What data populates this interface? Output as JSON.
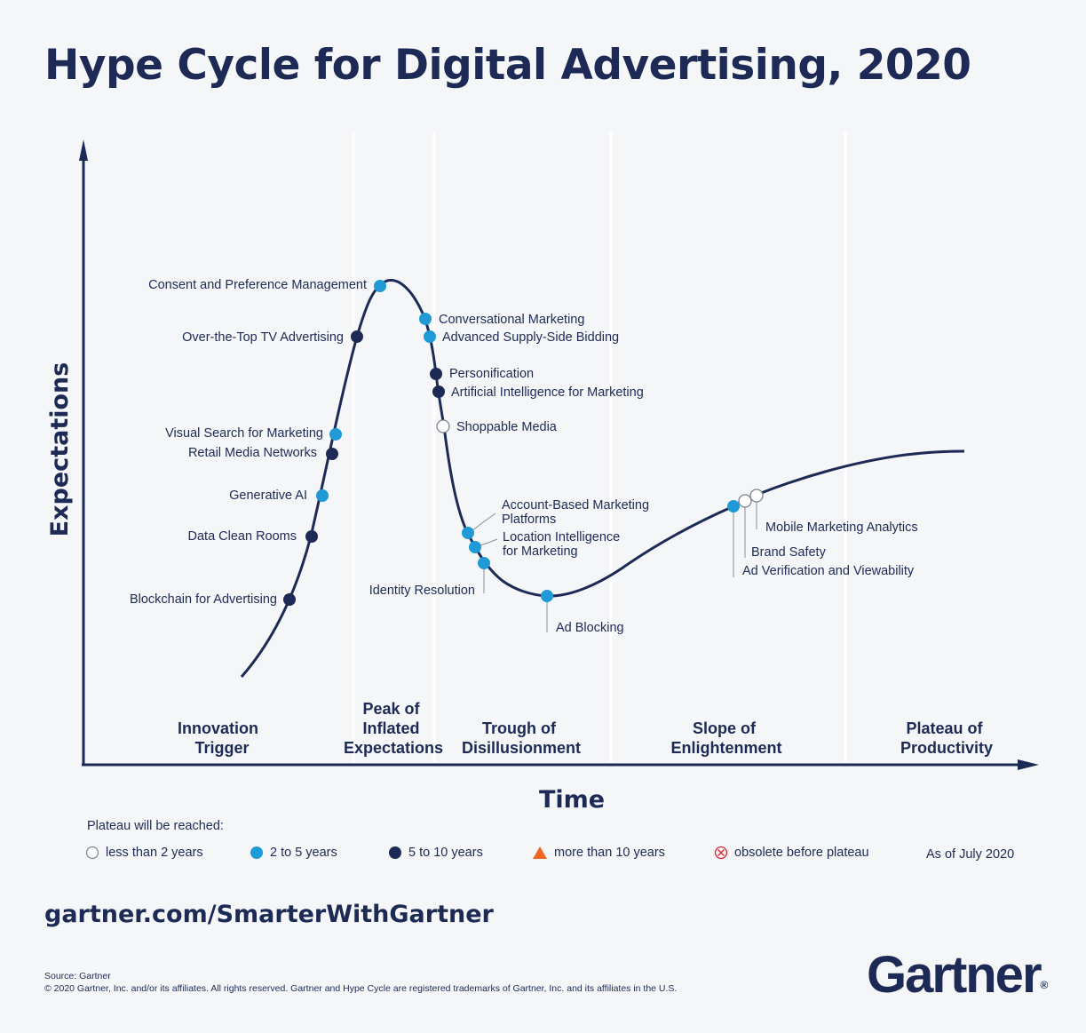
{
  "title": "Hype Cycle for Digital Advertising, 2020",
  "colors": {
    "navy": "#1c2a55",
    "blue": "#1f9ad6",
    "dark_dot": "#1c2a55",
    "orange": "#f26522",
    "red": "#d9262b",
    "background": "#f5f6f8"
  },
  "axes": {
    "y_title": "Expectations",
    "x_title": "Time"
  },
  "phases": [
    {
      "lines": [
        "Innovation",
        "Trigger"
      ]
    },
    {
      "lines": [
        "Peak of",
        "Inflated",
        "Expectations"
      ]
    },
    {
      "lines": [
        "Trough of",
        "Disillusionment"
      ]
    },
    {
      "lines": [
        "Slope of",
        "Enlightenment"
      ]
    },
    {
      "lines": [
        "Plateau of",
        "Productivity"
      ]
    }
  ],
  "technologies": [
    {
      "name": "Consent and Preference Management",
      "plateau": "2 to 5 years"
    },
    {
      "name": "Over-the-Top TV Advertising",
      "plateau": "5 to 10 years"
    },
    {
      "name": "Visual Search for Marketing",
      "plateau": "2 to 5 years"
    },
    {
      "name": "Retail Media Networks",
      "plateau": "5 to 10 years"
    },
    {
      "name": "Generative AI",
      "plateau": "2 to 5 years"
    },
    {
      "name": "Data Clean Rooms",
      "plateau": "5 to 10 years"
    },
    {
      "name": "Blockchain for Advertising",
      "plateau": "5 to 10 years"
    },
    {
      "name": "Conversational Marketing",
      "plateau": "2 to 5 years"
    },
    {
      "name": "Advanced Supply-Side Bidding",
      "plateau": "2 to 5 years"
    },
    {
      "name": "Personification",
      "plateau": "5 to 10 years"
    },
    {
      "name": "Artificial Intelligence for Marketing",
      "plateau": "5 to 10 years"
    },
    {
      "name": "Shoppable Media",
      "plateau": "less than 2 years"
    },
    {
      "name": "Account-Based Marketing Platforms",
      "lines": [
        "Account-Based Marketing",
        "Platforms"
      ],
      "plateau": "2 to 5 years"
    },
    {
      "name": "Location Intelligence for Marketing",
      "lines": [
        "Location Intelligence",
        "for Marketing"
      ],
      "plateau": "2 to 5 years"
    },
    {
      "name": "Identity Resolution",
      "plateau": "2 to 5 years"
    },
    {
      "name": "Ad Blocking",
      "plateau": "2 to 5 years"
    },
    {
      "name": "Ad Verification and Viewability",
      "plateau": "2 to 5 years"
    },
    {
      "name": "Brand Safety",
      "plateau": "less than 2 years"
    },
    {
      "name": "Mobile Marketing Analytics",
      "plateau": "less than 2 years"
    }
  ],
  "legend": {
    "title": "Plateau will be reached:",
    "items": [
      {
        "label": "less than 2 years",
        "marker": "hollow-circle"
      },
      {
        "label": "2 to 5 years",
        "marker": "blue-circle"
      },
      {
        "label": "5 to 10 years",
        "marker": "navy-circle"
      },
      {
        "label": "more than 10 years",
        "marker": "orange-triangle"
      },
      {
        "label": "obsolete before plateau",
        "marker": "crossed-circle"
      }
    ],
    "as_of": "As of July 2020"
  },
  "url": "gartner.com/SmarterWithGartner",
  "source": "Source: Gartner",
  "copyright": "© 2020 Gartner, Inc. and/or its affiliates. All rights reserved. Gartner and Hype Cycle are registered trademarks of Gartner, Inc. and its affiliates in the U.S.",
  "brand": {
    "name": "Gartner",
    "mark": "®"
  }
}
